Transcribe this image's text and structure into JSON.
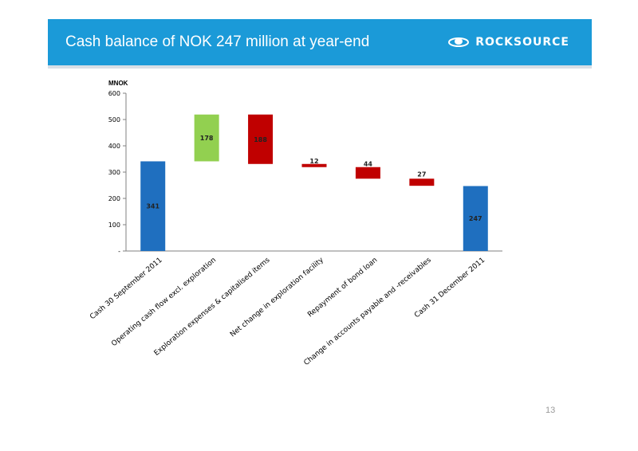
{
  "slide": {
    "title": "Cash balance of NOK 247 million at year-end",
    "logo_text": "ROCKSOURCE",
    "page_number": "13",
    "header_color": "#1b9ad8"
  },
  "chart_data": {
    "type": "bar",
    "subtype": "waterfall",
    "ylabel": "MNOK",
    "ylim": [
      0,
      600
    ],
    "yticks": [
      0,
      100,
      200,
      300,
      400,
      500,
      600
    ],
    "ytick_labels": [
      "-",
      "100",
      "200",
      "300",
      "400",
      "500",
      "600"
    ],
    "grid": false,
    "categories": [
      "Cash 30 September 2011",
      "Operating cash flow excl. exploration",
      "Exploration expenses & capitalised items",
      "Net change in exploration facility",
      "Repayment of  bond loan",
      "Change in accounts payable and -receivables",
      "Cash 31 December 2011"
    ],
    "bars": [
      {
        "label": "341",
        "start": 0,
        "end": 341,
        "kind": "total",
        "color": "#1f6fbf"
      },
      {
        "label": "178",
        "start": 341,
        "end": 519,
        "kind": "increase",
        "color": "#92d050"
      },
      {
        "label": "188",
        "start": 519,
        "end": 331,
        "kind": "decrease",
        "color": "#c00000"
      },
      {
        "label": "12",
        "start": 331,
        "end": 319,
        "kind": "decrease",
        "color": "#c00000"
      },
      {
        "label": "44",
        "start": 319,
        "end": 275,
        "kind": "decrease",
        "color": "#c00000"
      },
      {
        "label": "27",
        "start": 275,
        "end": 248,
        "kind": "decrease",
        "color": "#c00000"
      },
      {
        "label": "247",
        "start": 0,
        "end": 247,
        "kind": "total",
        "color": "#1f6fbf"
      }
    ]
  }
}
